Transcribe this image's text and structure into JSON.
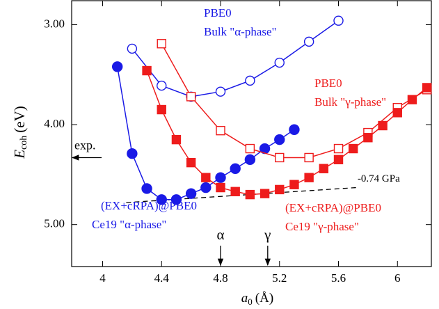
{
  "chart_data": {
    "type": "line",
    "x_label": {
      "main": "a",
      "sub": "0",
      "unit": "(Å)"
    },
    "y_label": {
      "main": "E",
      "sub": "coh",
      "unit": "(eV)"
    },
    "xlim": [
      3.79,
      6.23
    ],
    "ylim": [
      2.76,
      5.42
    ],
    "y_inverted": true,
    "xticks": [
      4,
      4.4,
      4.8,
      5.2,
      5.6,
      6
    ],
    "yticks": [
      {
        "value": 3,
        "label": "3.00"
      },
      {
        "value": 4,
        "label": "4.00"
      },
      {
        "value": 5,
        "label": "5.00"
      }
    ],
    "series": [
      {
        "name": "(EX+cRPA)@PBE0 Ce19 α-phase",
        "color": "#1a1ae6",
        "marker": "filled-circle",
        "x": [
          4.1,
          4.2,
          4.3,
          4.4,
          4.5,
          4.6,
          4.7,
          4.8,
          4.9,
          5.0,
          5.1,
          5.2,
          5.3
        ],
        "values": [
          3.42,
          4.29,
          4.64,
          4.75,
          4.75,
          4.69,
          4.63,
          4.53,
          4.44,
          4.35,
          4.24,
          4.15,
          4.05
        ]
      },
      {
        "name": "PBE0 Bulk α-phase",
        "color": "#1a1ae6",
        "marker": "open-circle",
        "x": [
          4.2,
          4.4,
          4.6,
          4.8,
          5.0,
          5.2,
          5.4,
          5.6
        ],
        "values": [
          3.24,
          3.61,
          3.72,
          3.67,
          3.56,
          3.38,
          3.17,
          2.96
        ]
      },
      {
        "name": "PBE0 Bulk γ-phase",
        "color": "#ee1c1c",
        "marker": "open-square",
        "x": [
          4.4,
          4.6,
          4.8,
          5.0,
          5.2,
          5.4,
          5.6,
          5.8,
          6.0,
          6.2
        ],
        "values": [
          3.19,
          3.72,
          4.06,
          4.24,
          4.33,
          4.33,
          4.24,
          4.08,
          3.83,
          3.65
        ]
      },
      {
        "name": "(EX+cRPA)@PBE0 Ce19 γ-phase",
        "color": "#ee1c1c",
        "marker": "filled-square",
        "x": [
          4.3,
          4.4,
          4.5,
          4.6,
          4.7,
          4.8,
          4.9,
          5.0,
          5.1,
          5.2,
          5.3,
          5.4,
          5.5,
          5.6,
          5.7,
          5.8,
          5.9,
          6.0,
          6.1,
          6.2
        ],
        "values": [
          3.46,
          3.85,
          4.15,
          4.38,
          4.53,
          4.63,
          4.67,
          4.7,
          4.69,
          4.65,
          4.6,
          4.53,
          4.44,
          4.35,
          4.24,
          4.13,
          4.01,
          3.88,
          3.75,
          3.63
        ]
      }
    ],
    "labels": [
      {
        "lines": [
          "PBE0",
          "Bulk \"α-phase\""
        ],
        "color": "#1a1ae6"
      },
      {
        "lines": [
          "PBE0",
          "Bulk \"γ-phase\""
        ],
        "color": "#ee1c1c"
      },
      {
        "lines": [
          "(EX+cRPA)@PBE0",
          "Ce19 \"α-phase\""
        ],
        "color": "#1a1ae6"
      },
      {
        "lines": [
          "(EX+cRPA)@PBE0",
          "Ce19 \"γ-phase\""
        ],
        "color": "#ee1c1c"
      }
    ],
    "pressure_line": {
      "text": "-0.74 GPa",
      "x": [
        4.16,
        5.72
      ],
      "values": [
        4.78,
        4.63
      ]
    },
    "exp_arrow": {
      "text": "exp.",
      "value": 4.33
    },
    "phase_arrows": [
      {
        "text": "α",
        "value": 4.8
      },
      {
        "text": "γ",
        "value": 5.12
      }
    ]
  }
}
